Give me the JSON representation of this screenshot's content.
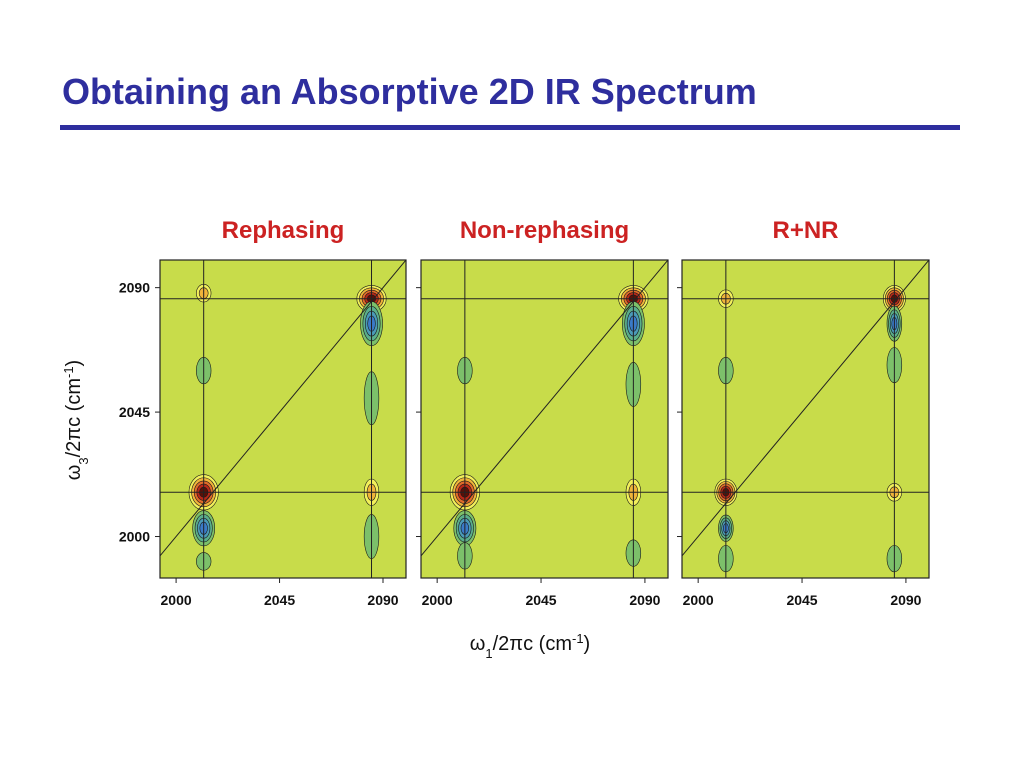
{
  "slide": {
    "title": "Obtaining an Absorptive 2D IR Spectrum"
  },
  "colors": {
    "title": "#2E2E9E",
    "panel_title": "#CC2222",
    "background_level": "#C8DC4A",
    "positive_levels": [
      "#F2F05A",
      "#F0B43A",
      "#E06A2A",
      "#B82818",
      "#5A1008"
    ],
    "negative_levels": [
      "#7CC06A",
      "#5AAE8C",
      "#4A9AB8",
      "#3A7AC8"
    ]
  },
  "chart_data": {
    "type": "heatmap",
    "description_type": "contour",
    "xlabel": "ω1/2πc (cm-1)",
    "ylabel": "ω3/2πc (cm-1)",
    "xlim": [
      1993,
      2100
    ],
    "ylim": [
      1985,
      2100
    ],
    "xticks": [
      2000,
      2045,
      2090
    ],
    "yticks": [
      2000,
      2045,
      2090
    ],
    "diagonal": true,
    "grid": false,
    "panels": [
      {
        "title": "Rephasing",
        "guide_lines": {
          "x": [
            2012,
            2085
          ],
          "y": [
            2086,
            2016
          ]
        },
        "features": [
          {
            "x": 2012,
            "y": 2016,
            "level": 5,
            "rx": 4,
            "ry": 4,
            "sign": "positive"
          },
          {
            "x": 2012,
            "y": 2003,
            "level": -4,
            "rx": 3,
            "ry": 4,
            "sign": "negative"
          },
          {
            "x": 2085,
            "y": 2086,
            "level": 5,
            "rx": 4,
            "ry": 3,
            "sign": "positive"
          },
          {
            "x": 2085,
            "y": 2077,
            "level": -4,
            "rx": 3,
            "ry": 5,
            "sign": "negative"
          },
          {
            "x": 2012,
            "y": 2088,
            "level": 2,
            "rx": 2,
            "ry": 2,
            "sign": "positive"
          },
          {
            "x": 2085,
            "y": 2016,
            "level": 2,
            "rx": 2,
            "ry": 3,
            "sign": "positive"
          },
          {
            "x": 2012,
            "y": 2060,
            "level": -1,
            "rx": 2,
            "ry": 3,
            "sign": "negative"
          },
          {
            "x": 2085,
            "y": 2000,
            "level": -1,
            "rx": 2,
            "ry": 5,
            "sign": "negative"
          },
          {
            "x": 2012,
            "y": 1991,
            "level": -1,
            "rx": 2,
            "ry": 2,
            "sign": "negative"
          },
          {
            "x": 2085,
            "y": 2050,
            "level": -1,
            "rx": 2,
            "ry": 6,
            "sign": "negative"
          }
        ]
      },
      {
        "title": "Non-rephasing",
        "guide_lines": {
          "x": [
            2012,
            2085
          ],
          "y": [
            2086,
            2016
          ]
        },
        "features": [
          {
            "x": 2012,
            "y": 2016,
            "level": 5,
            "rx": 4,
            "ry": 4,
            "sign": "positive"
          },
          {
            "x": 2012,
            "y": 2003,
            "level": -4,
            "rx": 3,
            "ry": 4,
            "sign": "negative"
          },
          {
            "x": 2085,
            "y": 2086,
            "level": 5,
            "rx": 4,
            "ry": 3,
            "sign": "positive"
          },
          {
            "x": 2085,
            "y": 2077,
            "level": -4,
            "rx": 3,
            "ry": 5,
            "sign": "negative"
          },
          {
            "x": 2085,
            "y": 2016,
            "level": 2,
            "rx": 2,
            "ry": 3,
            "sign": "positive"
          },
          {
            "x": 2012,
            "y": 2060,
            "level": -1,
            "rx": 2,
            "ry": 3,
            "sign": "negative"
          },
          {
            "x": 2085,
            "y": 1994,
            "level": -1,
            "rx": 2,
            "ry": 3,
            "sign": "negative"
          },
          {
            "x": 2012,
            "y": 1993,
            "level": -1,
            "rx": 2,
            "ry": 3,
            "sign": "negative"
          },
          {
            "x": 2085,
            "y": 2055,
            "level": -1,
            "rx": 2,
            "ry": 5,
            "sign": "negative"
          }
        ]
      },
      {
        "title": "R+NR",
        "guide_lines": {
          "x": [
            2012,
            2085
          ],
          "y": [
            2086,
            2016
          ]
        },
        "features": [
          {
            "x": 2012,
            "y": 2016,
            "level": 5,
            "rx": 3,
            "ry": 3,
            "sign": "positive"
          },
          {
            "x": 2012,
            "y": 2003,
            "level": -4,
            "rx": 2,
            "ry": 3,
            "sign": "negative"
          },
          {
            "x": 2085,
            "y": 2086,
            "level": 5,
            "rx": 3,
            "ry": 3,
            "sign": "positive"
          },
          {
            "x": 2085,
            "y": 2077,
            "level": -4,
            "rx": 2,
            "ry": 4,
            "sign": "negative"
          },
          {
            "x": 2012,
            "y": 2086,
            "level": 2,
            "rx": 2,
            "ry": 2,
            "sign": "positive"
          },
          {
            "x": 2085,
            "y": 2016,
            "level": 2,
            "rx": 2,
            "ry": 2,
            "sign": "positive"
          },
          {
            "x": 2012,
            "y": 2060,
            "level": -1,
            "rx": 2,
            "ry": 3,
            "sign": "negative"
          },
          {
            "x": 2085,
            "y": 2062,
            "level": -1,
            "rx": 2,
            "ry": 4,
            "sign": "negative"
          },
          {
            "x": 2012,
            "y": 1992,
            "level": -1,
            "rx": 2,
            "ry": 3,
            "sign": "negative"
          },
          {
            "x": 2085,
            "y": 1992,
            "level": -1,
            "rx": 2,
            "ry": 3,
            "sign": "negative"
          }
        ]
      }
    ]
  }
}
